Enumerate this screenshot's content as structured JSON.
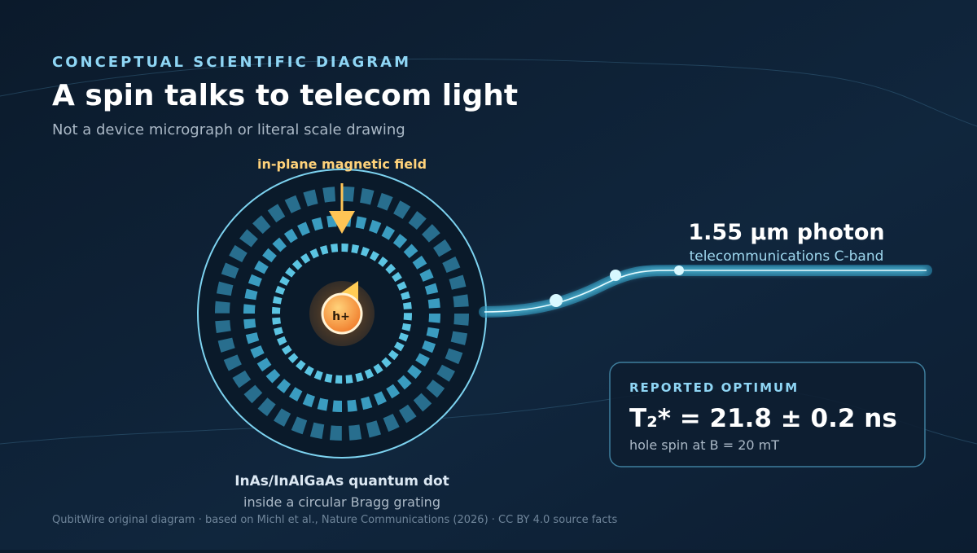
{
  "header": {
    "eyebrow": "CONCEPTUAL SCIENTIFIC DIAGRAM",
    "title": "A spin talks to telecom light",
    "subtitle": "Not a device micrograph or literal scale drawing"
  },
  "field_label": "in-plane magnetic field",
  "spin_label": "h+",
  "photon": {
    "title": "1.55 µm photon",
    "subtitle": "telecommunications C-band"
  },
  "result": {
    "eyebrow": "REPORTED OPTIMUM",
    "value": "T₂* = 21.8 ± 0.2 ns",
    "note": "hole spin at B = 20 mT"
  },
  "device": {
    "title": "InAs/InAlGaAs quantum dot",
    "subtitle": "inside a circular Bragg grating"
  },
  "footer": "QubitWire original diagram · based on Michl et al., Nature Communications (2026) · CC BY 4.0 source facts"
}
